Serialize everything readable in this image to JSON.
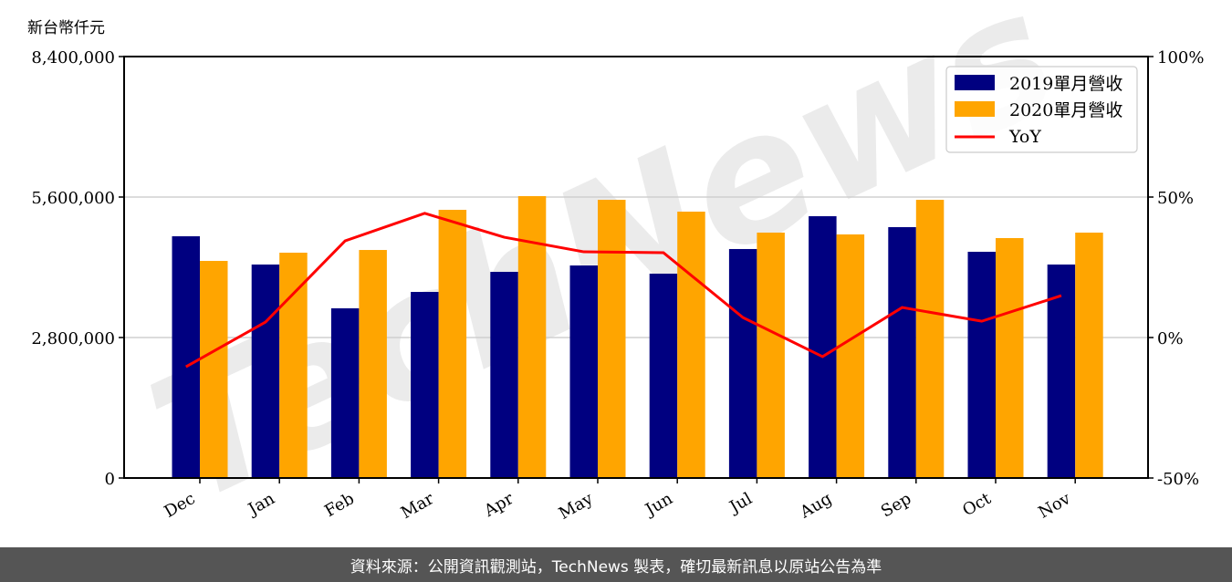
{
  "chart_data": {
    "type": "bar",
    "title": "",
    "ylabel": "新台幣仟元",
    "y2label": "",
    "xlabel": "",
    "categories": [
      "Dec",
      "Jan",
      "Feb",
      "Mar",
      "Apr",
      "May",
      "Jun",
      "Jul",
      "Aug",
      "Sep",
      "Oct",
      "Nov"
    ],
    "series": [
      {
        "name": "2019單月營收",
        "type": "bar",
        "color": "#000080",
        "values": [
          4818000,
          4255000,
          3382000,
          3709000,
          4109000,
          4236000,
          4073000,
          4564000,
          5218000,
          5000000,
          4509000,
          4255000
        ]
      },
      {
        "name": "2020單月營收",
        "type": "bar",
        "color": "#FFA500",
        "values": [
          4327000,
          4491000,
          4545000,
          5345000,
          5618000,
          5545000,
          5309000,
          4891000,
          4855000,
          5545000,
          4782000,
          4891000
        ]
      },
      {
        "name": "YoY",
        "type": "line",
        "axis": "right",
        "color": "#FF0000",
        "values": [
          -10.4,
          5.5,
          34.4,
          44.2,
          35.7,
          30.5,
          30.2,
          7.1,
          -6.8,
          10.7,
          5.8,
          14.9
        ]
      }
    ],
    "ylim": [
      0,
      8400000
    ],
    "yticks": [
      "0",
      "2,800,000",
      "5,600,000",
      "8,400,000"
    ],
    "y2lim": [
      -50,
      100
    ],
    "y2ticks": [
      "-50%",
      "0%",
      "50%",
      "100%"
    ],
    "grid": true,
    "legend_position": "upper right",
    "watermark": "TechNews"
  },
  "footer": {
    "text": "資料來源：公開資訊觀測站，TechNews 製表，確切最新訊息以原站公告為準"
  }
}
